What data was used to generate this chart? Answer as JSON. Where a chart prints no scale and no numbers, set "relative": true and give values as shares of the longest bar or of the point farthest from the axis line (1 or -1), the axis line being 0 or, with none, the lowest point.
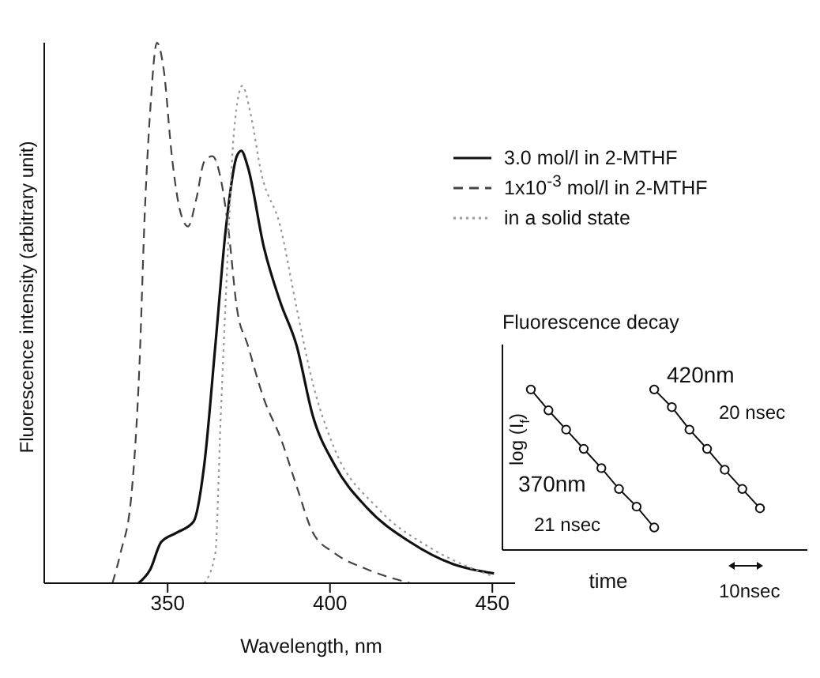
{
  "chart_data": [
    {
      "type": "line",
      "xlabel": "Wavelength, nm",
      "ylabel": "Fluorescence intensity (arbitrary unit)",
      "relative": true,
      "xlim": [
        312,
        457
      ],
      "xticks": [
        350,
        400,
        450
      ],
      "tick_labels": "x",
      "legend": "top right",
      "marker": "none",
      "series": [
        {
          "name": "3.0 mol/l in 2-MTHF",
          "color": "#111111",
          "line_style": "solid",
          "x": [
            341,
            344.7,
            348,
            353,
            358,
            361.3,
            364.7,
            368,
            371.3,
            372.7,
            374.7,
            379.7,
            384.7,
            389.7,
            394.7,
            401.3,
            411.3,
            424.7,
            438,
            450.5
          ],
          "values": [
            0,
            0.026,
            0.076,
            0.094,
            0.114,
            0.22,
            0.44,
            0.66,
            0.79,
            0.8,
            0.77,
            0.62,
            0.52,
            0.44,
            0.31,
            0.22,
            0.14,
            0.076,
            0.035,
            0.018
          ]
        },
        {
          "name": "1x10$^{-3}$ mol/l in 2-MTHF",
          "color": "#444444",
          "line_style": "dashed",
          "x": [
            333,
            335.5,
            338.8,
            341.3,
            343,
            344.7,
            346.7,
            348.8,
            351.3,
            353.8,
            356.3,
            358.8,
            361.3,
            363.8,
            366.3,
            368.8,
            371.3,
            374.7,
            379.7,
            384.7,
            389.7,
            394.7,
            401.3,
            411.3,
            424.7
          ],
          "values": [
            0,
            0.056,
            0.16,
            0.4,
            0.69,
            0.88,
            1,
            0.95,
            0.79,
            0.69,
            0.66,
            0.71,
            0.78,
            0.79,
            0.75,
            0.65,
            0.51,
            0.44,
            0.34,
            0.27,
            0.18,
            0.094,
            0.056,
            0.026,
            0
          ]
        },
        {
          "name": "in a solid state",
          "color": "#999999",
          "line_style": "dotted",
          "x": [
            361.3,
            364.7,
            366.3,
            368,
            370.5,
            373,
            375.5,
            378.8,
            384.7,
            389.7,
            394.7,
            401.3,
            414.5,
            431.3,
            450.5
          ],
          "values": [
            0,
            0.056,
            0.3,
            0.54,
            0.84,
            0.92,
            0.87,
            0.76,
            0.66,
            0.51,
            0.37,
            0.25,
            0.14,
            0.064,
            0.012
          ]
        }
      ]
    },
    {
      "type": "line",
      "title": "Fluorescence decay",
      "xlabel": "time",
      "ylabel": "log (I$_{f}$)",
      "relative": true,
      "tick_labels": false,
      "marker": "circle",
      "annotations": [
        "21 nsec",
        "20 nsec",
        "10nsec"
      ],
      "categories": [
        null,
        null,
        null,
        null,
        null,
        null,
        null,
        null,
        null,
        null,
        null,
        null,
        null,
        null
      ],
      "series": [
        {
          "name": "370nm",
          "color": "#111111",
          "values": [
            1,
            0.87,
            0.75,
            0.63,
            0.51,
            0.38,
            0.27,
            0.14,
            null,
            null,
            null,
            null,
            null,
            null
          ]
        },
        {
          "name": "420nm",
          "color": "#111111",
          "values": [
            null,
            null,
            null,
            null,
            null,
            null,
            null,
            1,
            0.89,
            0.75,
            0.63,
            0.5,
            0.38,
            0.26
          ]
        }
      ]
    }
  ]
}
